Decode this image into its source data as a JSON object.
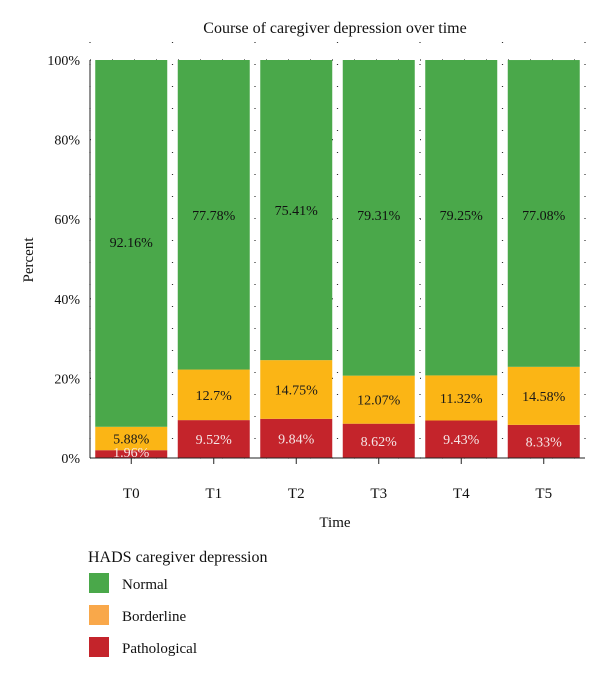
{
  "chart_data": {
    "type": "bar",
    "stacked": true,
    "title": "Course of caregiver depression over time",
    "xlabel": "Time",
    "ylabel": "Percent",
    "categories": [
      "T0",
      "T1",
      "T2",
      "T3",
      "T4",
      "T5"
    ],
    "ylim": [
      0,
      100
    ],
    "yticks": [
      "0%",
      "20%",
      "40%",
      "60%",
      "80%",
      "100%"
    ],
    "grid": true,
    "legend": {
      "title": "HADS caregiver depression",
      "position": "bottom-left"
    },
    "series": [
      {
        "name": "Pathological",
        "color": "#c4242b",
        "label_color": "#f5e6e6",
        "values": [
          1.96,
          9.52,
          9.84,
          8.62,
          9.43,
          8.33
        ],
        "labels": [
          "1.96%",
          "9.52%",
          "9.84%",
          "8.62%",
          "9.43%",
          "8.33%"
        ]
      },
      {
        "name": "Borderline",
        "color": "#fbb515",
        "label_color": "#1a1a1a",
        "values": [
          5.88,
          12.7,
          14.75,
          12.07,
          11.32,
          14.58
        ],
        "labels": [
          "5.88%",
          "12.7%",
          "14.75%",
          "12.07%",
          "11.32%",
          "14.58%"
        ]
      },
      {
        "name": "Normal",
        "color": "#4aa84a",
        "label_color": "#111111",
        "values": [
          92.16,
          77.78,
          75.41,
          79.31,
          79.25,
          77.08
        ],
        "labels": [
          "92.16%",
          "77.78%",
          "75.41%",
          "79.31%",
          "79.25%",
          "77.08%"
        ]
      }
    ],
    "legend_order": [
      "Normal",
      "Borderline",
      "Pathological"
    ],
    "legend_colors": {
      "Normal": "#4aa84a",
      "Borderline": "#f9a84a",
      "Pathological": "#c4242b"
    }
  }
}
